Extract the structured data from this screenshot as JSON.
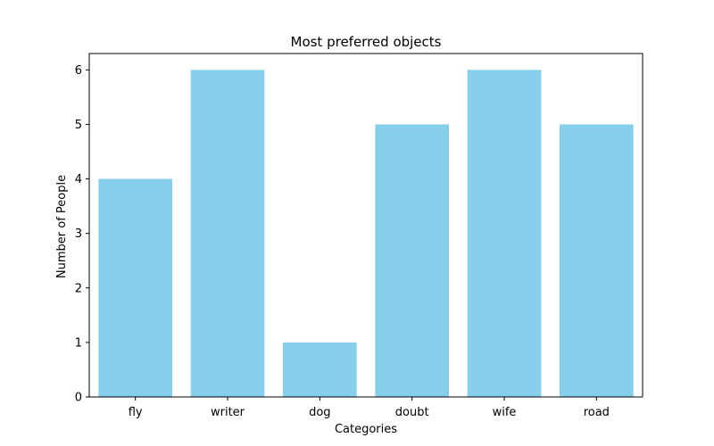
{
  "chart_data": {
    "type": "bar",
    "title": "Most preferred objects",
    "xlabel": "Categories",
    "ylabel": "Number of People",
    "categories": [
      "fly",
      "writer",
      "dog",
      "doubt",
      "wife",
      "road"
    ],
    "values": [
      4,
      6,
      1,
      5,
      6,
      5
    ],
    "ylim": [
      0,
      6.3
    ],
    "yticks": [
      0,
      1,
      2,
      3,
      4,
      5,
      6
    ],
    "grid": false,
    "legend": "none",
    "bar_color": "#87ceeb"
  }
}
